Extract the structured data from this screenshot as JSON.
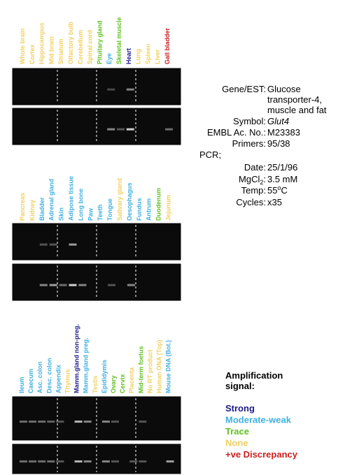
{
  "panels": [
    {
      "lanes": [
        {
          "label": "Whole brain",
          "color": "#f0d060"
        },
        {
          "label": "Cortex",
          "color": "#f0d060"
        },
        {
          "label": "Hippocampus",
          "color": "#f0d060"
        },
        {
          "label": "Mid brain",
          "color": "#f0d060"
        },
        {
          "label": "Striatum",
          "color": "#f0d060"
        },
        {
          "label": "Olfactory bulb",
          "color": "#f0d060"
        },
        {
          "label": "Cerebellum",
          "color": "#f0d060"
        },
        {
          "label": "Spinal cord",
          "color": "#f0d060"
        },
        {
          "label": "Pituitary gland",
          "color": "#60c020"
        },
        {
          "label": "Eye",
          "color": "#40b0e0"
        },
        {
          "label": "Skeletal muscle",
          "color": "#60c020"
        },
        {
          "label": "Heart",
          "color": "#1a1a8a"
        },
        {
          "label": "Lung",
          "color": "#f0d060"
        },
        {
          "label": "Spleen",
          "color": "#f0d060"
        },
        {
          "label": "Liver",
          "color": "#f0d060"
        },
        {
          "label": "Gall bladder",
          "color": "#cc2020"
        }
      ]
    },
    {
      "lanes": [
        {
          "label": "Pancreas",
          "color": "#f0d060"
        },
        {
          "label": "Kidney",
          "color": "#f0d060"
        },
        {
          "label": "Bladder",
          "color": "#40b0e0"
        },
        {
          "label": "Adrenal gland",
          "color": "#40b0e0"
        },
        {
          "label": "Skin",
          "color": "#40b0e0"
        },
        {
          "label": "Adipose tissue",
          "color": "#40b0e0"
        },
        {
          "label": "Long bone",
          "color": "#40b0e0"
        },
        {
          "label": "Paw",
          "color": "#40b0e0"
        },
        {
          "label": "Teeth",
          "color": "#40b0e0"
        },
        {
          "label": "Tongue",
          "color": "#40b0e0"
        },
        {
          "label": "Salivary gland",
          "color": "#f0d060"
        },
        {
          "label": "Oesophagus",
          "color": "#40b0e0"
        },
        {
          "label": "Fundus",
          "color": "#40b0e0"
        },
        {
          "label": "Antrum",
          "color": "#40b0e0"
        },
        {
          "label": "Duodenum",
          "color": "#60c020"
        },
        {
          "label": "Jejunum",
          "color": "#f0d060"
        }
      ]
    },
    {
      "lanes": [
        {
          "label": "Ileum",
          "color": "#40b0e0"
        },
        {
          "label": "Caecum",
          "color": "#40b0e0"
        },
        {
          "label": "Asc. colon",
          "color": "#40b0e0"
        },
        {
          "label": "Desc. colon",
          "color": "#40b0e0"
        },
        {
          "label": "Appendix",
          "color": "#40b0e0"
        },
        {
          "label": "Thymus",
          "color": "#f0d060"
        },
        {
          "label": "Mamm.gland non-preg.",
          "color": "#1a1a8a"
        },
        {
          "label": "Mamm.gland preg.",
          "color": "#40b0e0"
        },
        {
          "label": "Testis",
          "color": "#f0d060"
        },
        {
          "label": "Epididymis",
          "color": "#40b0e0"
        },
        {
          "label": "Ovary",
          "color": "#60c020"
        },
        {
          "label": "Cervix",
          "color": "#60c020"
        },
        {
          "label": "Placenta",
          "color": "#f0d060"
        },
        {
          "label": "Mid-term foetus",
          "color": "#60c020"
        },
        {
          "label": "No RT product",
          "color": "#f0d060"
        },
        {
          "label": "Human DNA (Top)",
          "color": "#f0d060"
        },
        {
          "label": "Mouse DNA (Bot.)",
          "color": "#40b0e0"
        }
      ]
    }
  ],
  "info": {
    "gene_key": "Gene/EST:",
    "gene_lines": [
      "Glucose",
      "transporter-4,",
      "muscle and fat"
    ],
    "symbol_key": "Symbol:",
    "symbol": "Glut4",
    "embl_key": "EMBL Ac. No.:",
    "embl": "M23383",
    "primers_key": "Primers:",
    "primers": "95/38",
    "pcr": "PCR;",
    "date_key": "Date:",
    "date": "25/1/96",
    "mg_key": "MgCl",
    "mg_sub": "2",
    "mg_colon": ":",
    "mg": "3.5 mM",
    "temp_key": "Temp:",
    "temp": "55",
    "temp_sup": "o",
    "temp_unit": "C",
    "cycles_key": "Cycles:",
    "cycles": "x35"
  },
  "legend": {
    "title_lines": [
      "Amplification",
      "signal:"
    ],
    "entries": [
      {
        "label": "Strong",
        "color": "#1a1a8a"
      },
      {
        "label": "Moderate-weak",
        "color": "#40b0e0"
      },
      {
        "label": "Trace",
        "color": "#60c020"
      },
      {
        "label": "None",
        "color": "#f0d060"
      },
      {
        "label": "+ve Discrepancy",
        "color": "#cc2020"
      }
    ]
  }
}
